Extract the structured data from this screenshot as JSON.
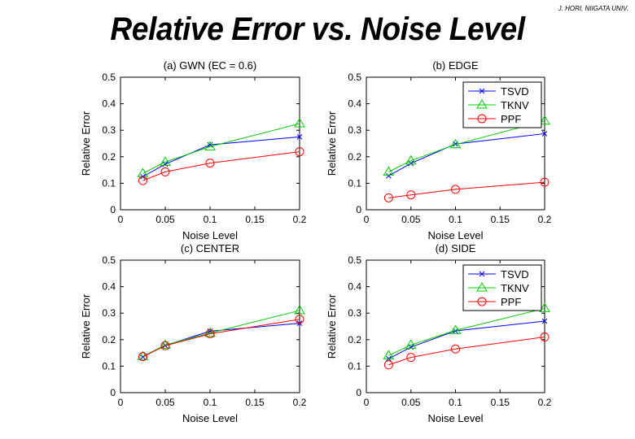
{
  "page": {
    "title": "Relative Error vs. Noise Level",
    "credit": "J. HORI, NIIGATA UNIV."
  },
  "colors": {
    "TSVD": "#0000ff",
    "TKNV": "#00cc00",
    "PPF": "#ff0000"
  },
  "chart_data": [
    {
      "type": "line",
      "title": "(a) GWN (EC = 0.6)",
      "xlabel": "Noise Level",
      "ylabel": "Relative Error",
      "xlim": [
        0,
        0.2
      ],
      "ylim": [
        0,
        0.5
      ],
      "xticks": [
        "0",
        "0.05",
        "0.1",
        "0.15",
        "0.2"
      ],
      "yticks": [
        "0",
        "0.1",
        "0.2",
        "0.3",
        "0.4",
        "0.5"
      ],
      "x": [
        0.025,
        0.05,
        0.1,
        0.2
      ],
      "legend": null,
      "series": [
        {
          "name": "TSVD",
          "marker": "x",
          "values": [
            0.125,
            0.172,
            0.245,
            0.275
          ]
        },
        {
          "name": "TKNV",
          "marker": "triangle",
          "values": [
            0.137,
            0.18,
            0.238,
            0.325
          ]
        },
        {
          "name": "PPF",
          "marker": "circle",
          "values": [
            0.11,
            0.143,
            0.176,
            0.219
          ]
        }
      ]
    },
    {
      "type": "line",
      "title": "(b) EDGE",
      "xlabel": "Noise Level",
      "ylabel": "Relative Error",
      "xlim": [
        0,
        0.2
      ],
      "ylim": [
        0,
        0.5
      ],
      "xticks": [
        "0",
        "0.05",
        "0.1",
        "0.15",
        "0.2"
      ],
      "yticks": [
        "0",
        "0.1",
        "0.2",
        "0.3",
        "0.4",
        "0.5"
      ],
      "x": [
        0.025,
        0.05,
        0.1,
        0.2
      ],
      "legend": "top-right",
      "series": [
        {
          "name": "TSVD",
          "marker": "x",
          "values": [
            0.128,
            0.175,
            0.248,
            0.287
          ]
        },
        {
          "name": "TKNV",
          "marker": "triangle",
          "values": [
            0.143,
            0.185,
            0.246,
            0.335
          ]
        },
        {
          "name": "PPF",
          "marker": "circle",
          "values": [
            0.045,
            0.056,
            0.077,
            0.104
          ]
        }
      ]
    },
    {
      "type": "line",
      "title": "(c) CENTER",
      "xlabel": "Noise Level",
      "ylabel": "Relative Error",
      "xlim": [
        0,
        0.2
      ],
      "ylim": [
        0,
        0.5
      ],
      "xticks": [
        "0",
        "0.05",
        "0.1",
        "0.15",
        "0.2"
      ],
      "yticks": [
        "0",
        "0.1",
        "0.2",
        "0.3",
        "0.4",
        "0.5"
      ],
      "x": [
        0.025,
        0.05,
        0.1,
        0.2
      ],
      "legend": null,
      "series": [
        {
          "name": "TSVD",
          "marker": "x",
          "values": [
            0.135,
            0.178,
            0.232,
            0.262
          ]
        },
        {
          "name": "TKNV",
          "marker": "triangle",
          "values": [
            0.137,
            0.18,
            0.225,
            0.31
          ]
        },
        {
          "name": "PPF",
          "marker": "circle",
          "values": [
            0.136,
            0.177,
            0.222,
            0.277
          ]
        }
      ]
    },
    {
      "type": "line",
      "title": "(d) SIDE",
      "xlabel": "Noise Level",
      "ylabel": "Relative Error",
      "xlim": [
        0,
        0.2
      ],
      "ylim": [
        0,
        0.5
      ],
      "xticks": [
        "0",
        "0.05",
        "0.1",
        "0.15",
        "0.2"
      ],
      "yticks": [
        "0",
        "0.1",
        "0.2",
        "0.3",
        "0.4",
        "0.5"
      ],
      "x": [
        0.025,
        0.05,
        0.1,
        0.2
      ],
      "legend": "top-right",
      "series": [
        {
          "name": "TSVD",
          "marker": "x",
          "values": [
            0.128,
            0.172,
            0.233,
            0.27
          ]
        },
        {
          "name": "TKNV",
          "marker": "triangle",
          "values": [
            0.14,
            0.18,
            0.235,
            0.318
          ]
        },
        {
          "name": "PPF",
          "marker": "circle",
          "values": [
            0.105,
            0.133,
            0.165,
            0.21
          ]
        }
      ]
    }
  ]
}
